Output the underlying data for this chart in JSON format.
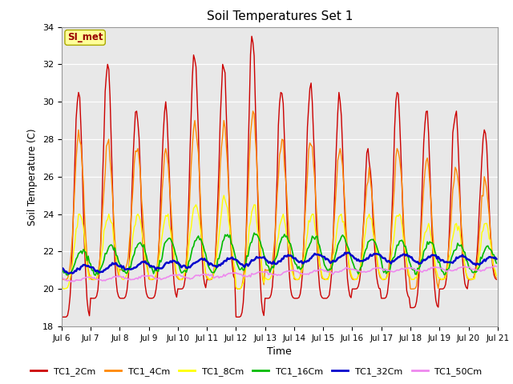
{
  "title": "Soil Temperatures Set 1",
  "xlabel": "Time",
  "ylabel": "Soil Temperature (C)",
  "ylim": [
    18,
    34
  ],
  "xtick_labels": [
    "Jul 6",
    "Jul 7",
    "Jul 8",
    "Jul 9",
    "Jul 10",
    "Jul 11",
    "Jul 12",
    "Jul 13",
    "Jul 14",
    "Jul 15",
    "Jul 16",
    "Jul 17",
    "Jul 18",
    "Jul 19",
    "Jul 20",
    "Jul 21"
  ],
  "bg_color": "#e8e8e8",
  "fig_color": "#ffffff",
  "series": [
    {
      "label": "TC1_2Cm",
      "color": "#cc0000"
    },
    {
      "label": "TC1_4Cm",
      "color": "#ff8800"
    },
    {
      "label": "TC1_8Cm",
      "color": "#ffff00"
    },
    {
      "label": "TC1_16Cm",
      "color": "#00bb00"
    },
    {
      "label": "TC1_32Cm",
      "color": "#0000cc"
    },
    {
      "label": "TC1_50Cm",
      "color": "#ee88ee"
    }
  ],
  "annotation_text": "SI_met",
  "annotation_bg": "#ffff99",
  "annotation_fg": "#990000",
  "yticks": [
    18,
    20,
    22,
    24,
    26,
    28,
    30,
    32,
    34
  ],
  "linewidths": [
    1.0,
    1.0,
    1.0,
    1.2,
    1.8,
    1.2
  ],
  "peak_2cm": [
    30.5,
    32.0,
    29.5,
    30.0,
    32.5,
    32.0,
    33.5,
    30.5,
    31.0,
    30.5,
    27.5,
    30.5,
    29.5,
    29.5,
    28.5
  ],
  "trough_2cm": [
    18.5,
    19.5,
    19.5,
    19.5,
    20.0,
    20.5,
    18.5,
    19.5,
    19.5,
    19.5,
    20.0,
    19.5,
    19.0,
    20.0,
    20.5
  ],
  "peak_4cm": [
    28.5,
    28.0,
    27.5,
    27.5,
    29.0,
    29.0,
    29.5,
    28.0,
    27.8,
    27.5,
    26.5,
    27.5,
    27.0,
    26.5,
    26.0
  ],
  "trough_4cm": [
    20.5,
    20.5,
    21.0,
    20.5,
    20.5,
    20.5,
    20.0,
    21.0,
    20.5,
    20.5,
    20.5,
    20.5,
    20.0,
    20.5,
    20.5
  ],
  "peak_8cm": [
    24.0,
    24.0,
    24.0,
    24.0,
    24.5,
    25.0,
    24.5,
    24.0,
    24.0,
    24.0,
    24.0,
    24.0,
    23.5,
    23.5,
    23.5
  ],
  "trough_8cm": [
    20.0,
    20.5,
    20.5,
    20.5,
    20.5,
    20.5,
    20.0,
    20.5,
    20.5,
    20.5,
    20.5,
    20.5,
    20.5,
    20.5,
    20.5
  ]
}
